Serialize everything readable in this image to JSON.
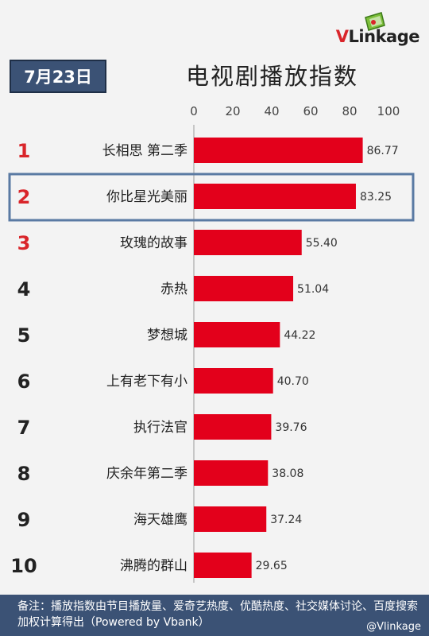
{
  "logo": {
    "text_v": "V",
    "text_rest": "Linkage"
  },
  "date": "7月23日",
  "title": "电视剧播放指数",
  "footer": {
    "note": "备注：播放指数由节目播放量、爱奇艺热度、优酷热度、社交媒体讨论、百度搜索加权计算得出（Powered by Vbank）",
    "weibo": "@Vlinkage"
  },
  "colors": {
    "bar": "#e3001b",
    "rank_top": "#d9252a",
    "rank_rest": "#222222",
    "highlight_border": "#5a7aa3",
    "header": "#3b5275"
  },
  "chart_data": {
    "type": "bar",
    "orientation": "horizontal",
    "xlim": [
      0,
      100
    ],
    "ticks": [
      "0",
      "20",
      "40",
      "60",
      "80",
      "100"
    ],
    "ranks": [
      "1",
      "2",
      "3",
      "4",
      "5",
      "6",
      "7",
      "8",
      "9",
      "10"
    ],
    "categories": [
      "长相思 第二季",
      "你比星光美丽",
      "玫瑰的故事",
      "赤热",
      "梦想城",
      "上有老下有小",
      "执行法官",
      "庆余年第二季",
      "海天雄鹰",
      "沸腾的群山"
    ],
    "values": [
      86.77,
      83.25,
      55.4,
      51.04,
      44.22,
      40.7,
      39.76,
      38.08,
      37.24,
      29.65
    ],
    "value_labels": [
      "86.77",
      "83.25",
      "55.40",
      "51.04",
      "44.22",
      "40.70",
      "39.76",
      "38.08",
      "37.24",
      "29.65"
    ],
    "highlighted_index": 1
  }
}
